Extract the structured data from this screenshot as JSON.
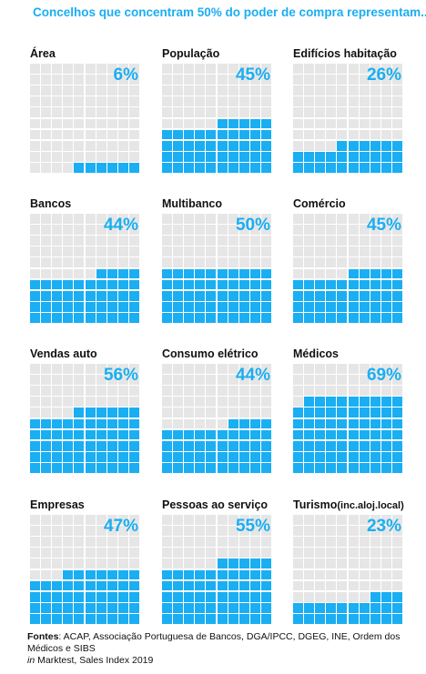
{
  "title": "Concelhos que concentram 50% do poder de compra representam...",
  "colors": {
    "accent": "#1aaef2",
    "empty": "#e6e6e6"
  },
  "chart_data": {
    "type": "waffle",
    "unit": "%",
    "panels": [
      {
        "label": "Área",
        "value": 6,
        "value_label": "6%"
      },
      {
        "label": "População",
        "value": 45,
        "value_label": "45%"
      },
      {
        "label": "Edifícios habitação",
        "value": 26,
        "value_label": "26%"
      },
      {
        "label": "Bancos",
        "value": 44,
        "value_label": "44%"
      },
      {
        "label": "Multibanco",
        "value": 50,
        "value_label": "50%"
      },
      {
        "label": "Comércio",
        "value": 45,
        "value_label": "45%"
      },
      {
        "label": "Vendas auto",
        "value": 56,
        "value_label": "56%"
      },
      {
        "label": "Consumo elétrico",
        "value": 44,
        "value_label": "44%"
      },
      {
        "label": "Médicos",
        "value": 69,
        "value_label": "69%"
      },
      {
        "label": "Empresas",
        "value": 47,
        "value_label": "47%"
      },
      {
        "label": "Pessoas ao serviço",
        "value": 55,
        "value_label": "55%"
      },
      {
        "label": "Turismo",
        "label_suffix": "(inc.aloj.local)",
        "value": 23,
        "value_label": "23%"
      }
    ]
  },
  "sources": {
    "prefix": "Fontes",
    "text": ": ACAP, Associação Portuguesa de Bancos, DGA/IPCC,  DGEG, INE, Ordem dos Médicos e SIBS",
    "line2_italic": "in",
    "line2_text": " Marktest, Sales Index 2019"
  }
}
